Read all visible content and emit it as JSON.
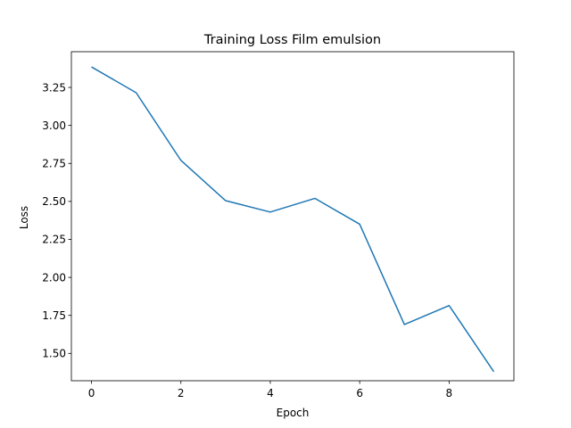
{
  "chart_data": {
    "type": "line",
    "title": "Training Loss Film emulsion",
    "xlabel": "Epoch",
    "ylabel": "Loss",
    "x": [
      0,
      1,
      2,
      3,
      4,
      5,
      6,
      7,
      8,
      9
    ],
    "series": [
      {
        "values": [
          3.385,
          3.215,
          2.77,
          2.505,
          2.43,
          2.52,
          2.35,
          1.69,
          1.815,
          1.38
        ],
        "color": "#1f77b4"
      }
    ],
    "xlim": [
      -0.45,
      9.45
    ],
    "ylim": [
      1.32,
      3.485
    ],
    "xticks": [
      0,
      2,
      4,
      6,
      8
    ],
    "xtick_labels": [
      "0",
      "2",
      "4",
      "6",
      "8"
    ],
    "yticks": [
      1.5,
      1.75,
      2.0,
      2.25,
      2.5,
      2.75,
      3.0,
      3.25
    ],
    "ytick_labels": [
      "1.50",
      "1.75",
      "2.00",
      "2.25",
      "2.50",
      "2.75",
      "3.00",
      "3.25"
    ],
    "grid": false,
    "legend": "none"
  }
}
